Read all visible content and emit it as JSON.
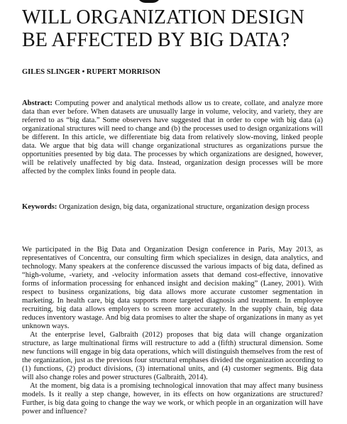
{
  "title": "WILL ORGANIZATION DESIGN BE AFFECTED BY BIG DATA?",
  "authors": "GILES SLINGER • RUPERT MORRISON",
  "abstract": {
    "label": "Abstract:",
    "text": " Computing power and analytical methods allow us to create, collate, and analyze more data than ever before. When datasets are unusually large in volume, velocity, and variety, they are referred to as “big data.” Some observers have suggested that in order to cope with big data (a) organizational structures will need to change and (b) the processes used to design organizations will be different. In this article, we differentiate big data from relatively slow-moving, linked people data. We argue that big data will change organizational structures as organizations pursue the opportunities presented by big data. The processes by which organizations are designed, however, will be relatively unaffected by big data. Instead, organization design processes will be more affected by the complex links found in people data."
  },
  "keywords": {
    "label": "Keywords:",
    "text": " Organization design, big data, organizational structure, organization design process"
  },
  "body": {
    "p1": "We participated in the Big Data and Organization Design conference in Paris, May 2013, as representatives of Concentra, our consulting firm which specializes in design, data analytics, and technology. Many speakers at the conference discussed the various impacts of big data, defined as “high-volume, -variety, and -velocity information assets that demand cost-effective, innovative forms of information processing for enhanced insight and decision making” (Laney, 2001). With respect to business organizations, big data allows more accurate customer segmentation in marketing. In health care, big data supports more targeted diagnosis and treatment. In employee recruiting, big data allows employers to screen more accurately. In the supply chain, big data reduces inventory wastage. And big data promises to alter the shape of organizations in many as yet unknown ways.",
    "p2": "At the enterprise level, Galbraith (2012) proposes that big data will change organization structure, as large multinational firms will restructure to add a (fifth) structural dimension. Some new functions will engage in big data operations, which will distinguish themselves from the rest of the organization, just as the previous four structural emphases divided the organization according to (1) functions, (2) product divisions, (3) international units, and (4) customer segments. Big data will also change roles and power structures (Galbraith, 2014).",
    "p3": "At the moment, big data is a promising technological innovation that may affect many business models. Is it really a step change, however, in its effects on how organizations are structured? Further, is big data going to change the way we work, or which people in an organization will have power and influence?"
  }
}
